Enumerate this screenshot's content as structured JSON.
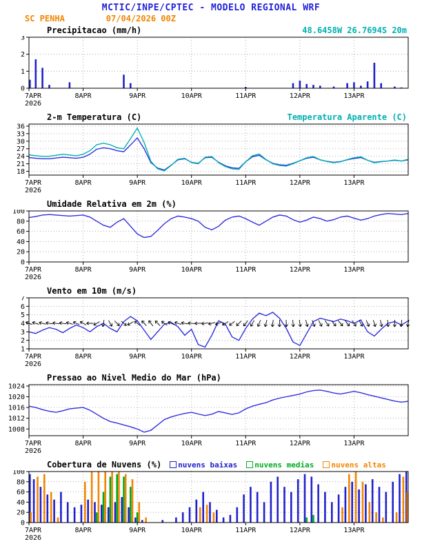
{
  "header": {
    "title": "MCTIC/INPE/CPTEC - MODELO REGIONAL WRF",
    "station": "SC PENHA",
    "run": "07/04/2026 00Z",
    "location": "48.6458W 26.7694S 20m"
  },
  "colors": {
    "header_blue": "#2020d8",
    "orange": "#f28500",
    "cyan": "#00b0b0",
    "line_blue": "#2e2ee0",
    "bar_blue": "#2020cc",
    "green": "#00aa22",
    "black": "#000000",
    "grid": "#999999"
  },
  "x_axis": {
    "range": [
      0,
      168
    ],
    "step": 3,
    "day_ticks": [
      {
        "hour": 0,
        "label": "7APR",
        "sub": "2026"
      },
      {
        "hour": 24,
        "label": "8APR"
      },
      {
        "hour": 48,
        "label": "9APR"
      },
      {
        "hour": 72,
        "label": "10APR"
      },
      {
        "hour": 96,
        "label": "11APR"
      },
      {
        "hour": 120,
        "label": "12APR"
      },
      {
        "hour": 144,
        "label": "13APR"
      }
    ]
  },
  "chart_data": [
    {
      "type": "bar",
      "title": "Precipitacao (mm/h)",
      "ylim": [
        0,
        3
      ],
      "yticks": [
        0,
        1,
        2,
        3
      ],
      "series": [
        {
          "name": "precipitacao",
          "color_key": "bar_blue",
          "values": [
            0.5,
            1.7,
            1.2,
            0.2,
            0,
            0,
            0.35,
            0,
            0,
            0,
            0,
            0,
            0,
            0,
            0.8,
            0.3,
            0,
            0,
            0,
            0,
            0,
            0,
            0,
            0,
            0,
            0,
            0,
            0,
            0,
            0,
            0,
            0,
            0.08,
            0,
            0,
            0,
            0,
            0,
            0,
            0.3,
            0.45,
            0.25,
            0.2,
            0.15,
            0,
            0.1,
            0,
            0.3,
            0.35,
            0.15,
            0.4,
            1.5,
            0.3,
            0,
            0.1,
            0.05,
            0
          ]
        }
      ]
    },
    {
      "type": "line",
      "title": "2-m Temperatura (C)",
      "ylim": [
        16.5,
        36.8
      ],
      "yticks": [
        18,
        21,
        24,
        27,
        30,
        33,
        36
      ],
      "series": [
        {
          "name": "2-m Temperatura (C)",
          "color_key": "line_blue",
          "values": [
            23.5,
            23.2,
            23.0,
            23.0,
            23.3,
            23.6,
            23.4,
            23.2,
            23.6,
            24.8,
            26.8,
            27.4,
            27.0,
            26.2,
            25.8,
            28.5,
            31.3,
            27.0,
            21.5,
            19.3,
            18.5,
            20.5,
            22.6,
            23.0,
            21.6,
            21.2,
            23.4,
            23.6,
            21.6,
            20.2,
            19.4,
            19.2,
            21.8,
            23.8,
            24.4,
            22.6,
            21.2,
            20.6,
            20.4,
            21.2,
            22.2,
            23.2,
            23.6,
            22.6,
            22.0,
            21.6,
            21.9,
            22.6,
            23.1,
            23.5,
            22.4,
            21.6,
            21.9,
            22.1,
            22.4,
            22.1,
            22.6
          ]
        },
        {
          "name": "Temperatura Aparente (C)",
          "color_key": "cyan",
          "values": [
            24.6,
            24.2,
            24.0,
            24.0,
            24.4,
            24.8,
            24.5,
            24.2,
            24.8,
            26.2,
            28.6,
            29.2,
            28.6,
            27.4,
            27.0,
            31.0,
            35.2,
            29.5,
            22.0,
            19.0,
            18.2,
            20.4,
            22.8,
            23.2,
            21.5,
            21.0,
            23.6,
            23.9,
            21.4,
            19.9,
            19.0,
            18.8,
            21.8,
            24.2,
            24.9,
            22.7,
            21.0,
            20.3,
            20.1,
            21.0,
            22.2,
            23.4,
            23.9,
            22.6,
            21.9,
            21.4,
            21.8,
            22.7,
            23.4,
            23.8,
            22.4,
            21.4,
            21.8,
            22.1,
            22.5,
            22.1,
            22.8
          ]
        }
      ]
    },
    {
      "type": "line",
      "title": "Umidade Relativa em 2m (%)",
      "ylim": [
        0,
        100
      ],
      "yticks": [
        0,
        20,
        40,
        60,
        80,
        100
      ],
      "series": [
        {
          "name": "umidade relativa",
          "color_key": "line_blue",
          "values": [
            87,
            89,
            92,
            93,
            92,
            91,
            90,
            91,
            92,
            88,
            80,
            72,
            68,
            78,
            85,
            70,
            55,
            48,
            50,
            62,
            75,
            85,
            90,
            88,
            85,
            80,
            68,
            63,
            70,
            82,
            88,
            90,
            85,
            78,
            72,
            80,
            88,
            92,
            90,
            83,
            78,
            82,
            88,
            85,
            80,
            83,
            88,
            90,
            86,
            82,
            85,
            90,
            93,
            95,
            94,
            93,
            95
          ]
        }
      ]
    },
    {
      "type": "line",
      "title": "Vento em 10m (m/s)",
      "ylim": [
        1,
        7
      ],
      "yticks": [
        1,
        2,
        3,
        4,
        5,
        6,
        7
      ],
      "series": [
        {
          "name": "vento 10m",
          "color_key": "line_blue",
          "values": [
            3.0,
            2.8,
            3.2,
            3.5,
            3.3,
            2.9,
            3.4,
            3.8,
            3.5,
            3.0,
            3.6,
            4.0,
            3.4,
            3.0,
            4.2,
            4.8,
            4.3,
            3.2,
            2.1,
            3.0,
            3.9,
            4.1,
            3.6,
            2.6,
            3.3,
            1.5,
            1.2,
            2.6,
            4.3,
            3.9,
            2.4,
            2.0,
            3.4,
            4.5,
            5.2,
            4.9,
            5.3,
            4.6,
            3.4,
            1.8,
            1.4,
            2.8,
            4.2,
            4.6,
            4.4,
            4.2,
            4.5,
            4.3,
            4.0,
            4.4,
            3.0,
            2.5,
            3.3,
            4.0,
            4.2,
            3.8,
            4.3
          ]
        }
      ],
      "arrows": {
        "anchor_y": 4,
        "dirs": [
          200,
          198,
          195,
          190,
          188,
          190,
          195,
          205,
          210,
          180,
          150,
          100,
          60,
          45,
          40,
          150,
          220,
          228,
          232,
          225,
          215,
          205,
          198,
          190,
          185,
          178,
          172,
          165,
          158,
          150,
          142,
          135,
          128,
          120,
          112,
          105,
          98,
          92,
          88,
          84,
          80,
          75,
          68,
          62,
          55,
          52,
          50,
          52,
          56,
          60,
          66,
          72,
          78,
          84,
          90,
          96,
          102
        ]
      }
    },
    {
      "type": "line",
      "title": "Pressao ao Nivel Medio do Mar (hPa)",
      "ylim": [
        1005.5,
        1024.5
      ],
      "yticks": [
        1008,
        1012,
        1016,
        1020,
        1024
      ],
      "series": [
        {
          "name": "pressao nivel do mar",
          "color_key": "line_blue",
          "values": [
            1016.5,
            1016.0,
            1015.2,
            1014.6,
            1014.2,
            1014.8,
            1015.5,
            1015.8,
            1016.0,
            1015.0,
            1013.5,
            1012.0,
            1010.8,
            1010.2,
            1009.5,
            1008.8,
            1008.0,
            1006.8,
            1007.5,
            1009.5,
            1011.5,
            1012.5,
            1013.2,
            1013.8,
            1014.2,
            1013.6,
            1013.0,
            1013.5,
            1014.5,
            1014.0,
            1013.4,
            1014.0,
            1015.5,
            1016.5,
            1017.2,
            1017.8,
            1018.8,
            1019.5,
            1020.0,
            1020.5,
            1021.0,
            1021.8,
            1022.3,
            1022.5,
            1022.0,
            1021.4,
            1021.0,
            1021.5,
            1022.0,
            1021.5,
            1020.8,
            1020.2,
            1019.6,
            1019.0,
            1018.4,
            1018.0,
            1018.3
          ]
        }
      ]
    },
    {
      "type": "bar-multi",
      "title": "Cobertura de Nuvens (%)",
      "ylim": [
        0,
        100
      ],
      "yticks": [
        0,
        20,
        40,
        60,
        80,
        100
      ],
      "legend": [
        {
          "label": "nuvens baixas",
          "color_key": "bar_blue"
        },
        {
          "label": "nuvens medias",
          "color_key": "green"
        },
        {
          "label": "nuvens altas",
          "color_key": "orange"
        }
      ],
      "series": [
        {
          "name": "nuvens baixas",
          "color_key": "bar_blue",
          "values": [
            95,
            85,
            70,
            55,
            45,
            60,
            40,
            30,
            35,
            45,
            40,
            35,
            30,
            40,
            50,
            30,
            10,
            5,
            0,
            0,
            5,
            0,
            10,
            20,
            30,
            45,
            60,
            40,
            25,
            10,
            15,
            30,
            55,
            70,
            60,
            40,
            80,
            90,
            70,
            60,
            85,
            95,
            90,
            75,
            60,
            40,
            55,
            70,
            80,
            65,
            75,
            85,
            70,
            60,
            80,
            95,
            100
          ]
        },
        {
          "name": "nuvens medias",
          "color_key": "green",
          "values": [
            0,
            0,
            0,
            0,
            0,
            0,
            0,
            0,
            0,
            0,
            20,
            60,
            90,
            95,
            90,
            70,
            20,
            0,
            0,
            0,
            0,
            0,
            0,
            0,
            0,
            0,
            0,
            0,
            0,
            0,
            0,
            0,
            0,
            0,
            0,
            0,
            0,
            0,
            0,
            0,
            0,
            10,
            15,
            0,
            0,
            0,
            0,
            0,
            0,
            0,
            0,
            0,
            0,
            0,
            0,
            0,
            0
          ]
        },
        {
          "name": "nuvens altas",
          "color_key": "orange",
          "values": [
            20,
            90,
            95,
            60,
            10,
            0,
            0,
            0,
            80,
            100,
            100,
            100,
            100,
            100,
            95,
            85,
            40,
            10,
            0,
            0,
            0,
            0,
            0,
            0,
            0,
            30,
            35,
            20,
            0,
            0,
            0,
            0,
            0,
            0,
            0,
            0,
            0,
            0,
            0,
            0,
            0,
            0,
            0,
            0,
            0,
            0,
            30,
            95,
            100,
            80,
            40,
            20,
            10,
            0,
            20,
            90,
            60
          ]
        }
      ]
    }
  ]
}
